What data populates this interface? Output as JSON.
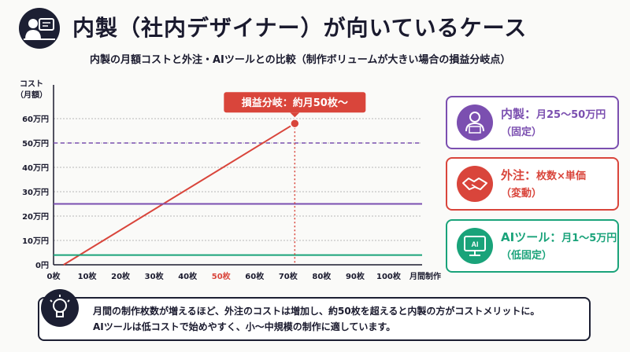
{
  "header": {
    "title": "内製（社内デザイナー）が向いているケース",
    "subtitle": "内製の月額コストと外注・AIツールとの比較（制作ボリュームが大きい場合の損益分岐点）"
  },
  "chart_data": {
    "type": "line",
    "ylabel": "コスト（月額）",
    "xlabel": "月間制作枚数",
    "x_ticks": [
      "0枚",
      "10枚",
      "20枚",
      "30枚",
      "40枚",
      "50枚",
      "60枚",
      "70枚",
      "80枚",
      "90枚",
      "100枚"
    ],
    "y_ticks": [
      "0円",
      "10万円",
      "20万円",
      "30万円",
      "40万円",
      "50万円",
      "60万円"
    ],
    "xlim": [
      0,
      110
    ],
    "ylim": [
      0,
      70
    ],
    "highlight_x_tick": "50枚",
    "series": [
      {
        "key": "outsource",
        "color": "#d9453b",
        "points": [
          [
            3,
            0
          ],
          [
            72,
            58
          ]
        ]
      },
      {
        "key": "inhouse",
        "color": "#7b4fb0",
        "points": [
          [
            0,
            25
          ],
          [
            110,
            25
          ]
        ]
      },
      {
        "key": "ai",
        "color": "#1aa37a",
        "points": [
          [
            0,
            4
          ],
          [
            110,
            4
          ]
        ]
      }
    ],
    "reference_line_y": 50,
    "marker": {
      "x": 72,
      "y": 58
    },
    "annotation": "損益分岐：約月50枚〜"
  },
  "cards": [
    {
      "name": "内製：",
      "value": "月25〜50万円",
      "note": "（固定）",
      "color": "#7b4fb0",
      "icon": "person-laptop-icon"
    },
    {
      "name": "外注：",
      "value": "枚数×単価",
      "note": "（変動）",
      "color": "#d9453b",
      "icon": "handshake-icon"
    },
    {
      "name": "AIツール：",
      "value": "月1〜5万円",
      "note": "（低固定）",
      "color": "#1aa37a",
      "icon": "ai-monitor-icon"
    }
  ],
  "note": {
    "line1": "月間の制作枚数が増えるほど、外注のコストは増加し、約50枚を超えると内製の方がコストメリットに。",
    "line2": "AIツールは低コストで始めやすく、小〜中規模の制作に適しています。"
  }
}
